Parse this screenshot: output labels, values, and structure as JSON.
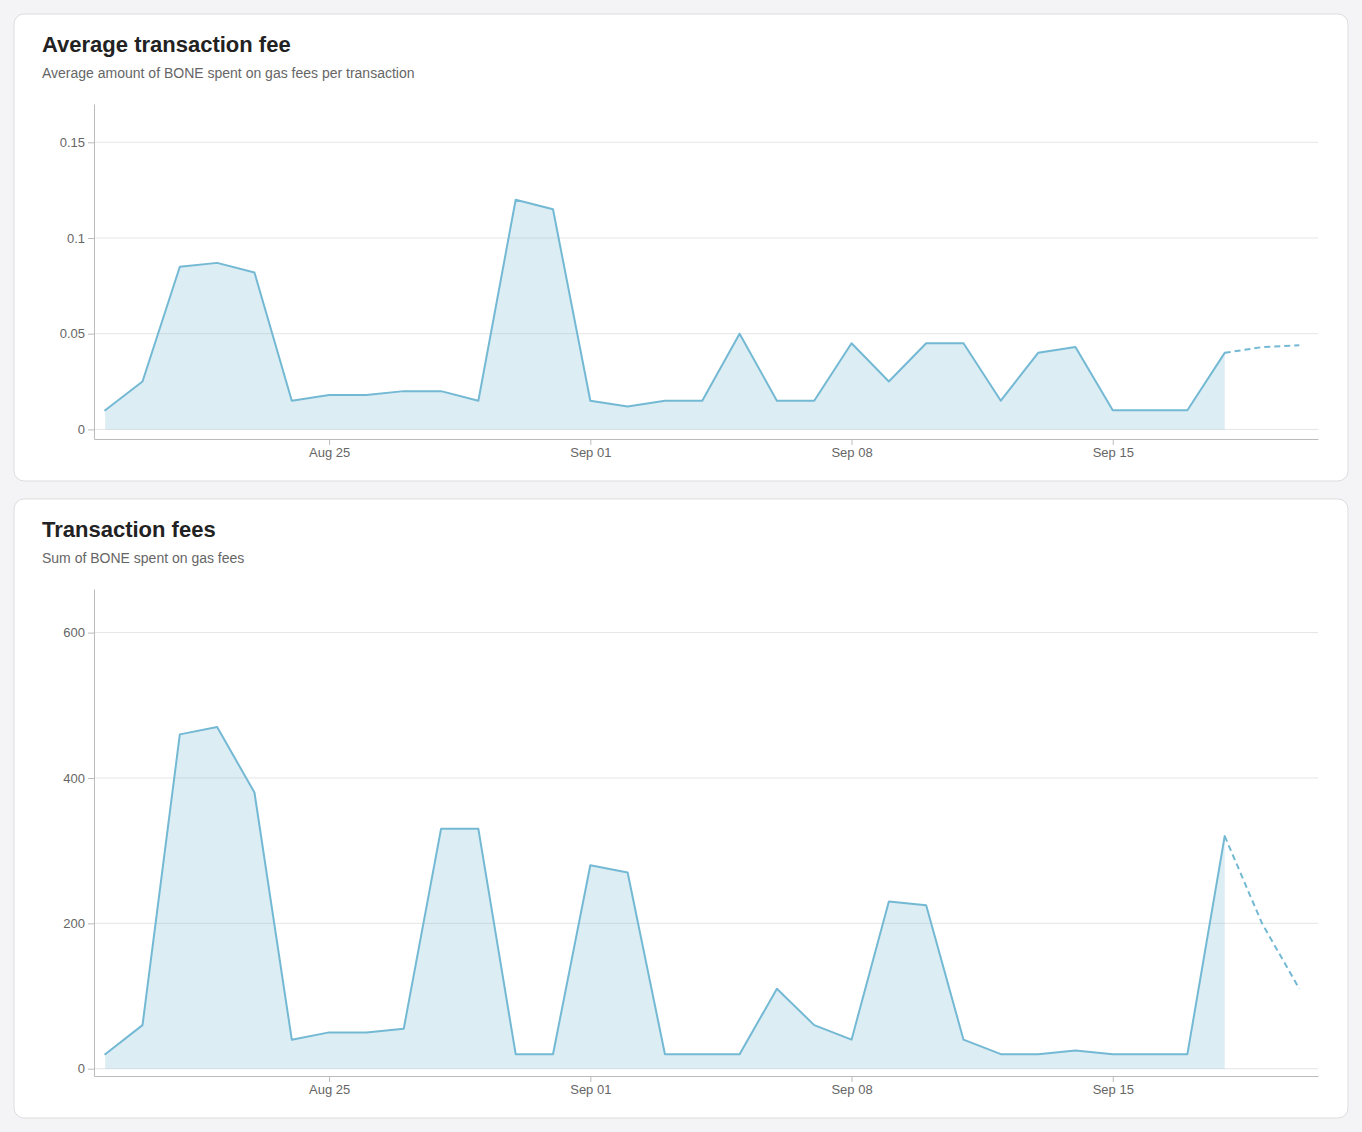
{
  "chart_data": [
    {
      "type": "line",
      "title": "Average transaction fee",
      "subtitle": "Average amount of BONE spent on gas fees per transaction",
      "series": [
        {
          "type": "area",
          "line_style": "solid",
          "color": "#74b9d4",
          "x": [
            0,
            1,
            2,
            3,
            4,
            5,
            6,
            7,
            8,
            9,
            10,
            11,
            12,
            13,
            14,
            15,
            16,
            17,
            18,
            19,
            20,
            21,
            22,
            23,
            24,
            25,
            26,
            27,
            28,
            29,
            30
          ],
          "values": [
            0.01,
            0.025,
            0.085,
            0.087,
            0.082,
            0.015,
            0.018,
            0.018,
            0.02,
            0.02,
            0.015,
            0.12,
            0.115,
            0.015,
            0.012,
            0.015,
            0.015,
            0.05,
            0.015,
            0.015,
            0.045,
            0.025,
            0.045,
            0.045,
            0.015,
            0.04,
            0.043,
            0.01,
            0.01,
            0.01,
            0.04
          ]
        },
        {
          "type": "line",
          "line_style": "dashed",
          "color": "#74b9d4",
          "x": [
            30,
            31,
            32
          ],
          "values": [
            0.04,
            0.043,
            0.044
          ]
        }
      ],
      "xlim": [
        -0.3,
        32.5
      ],
      "xticks": [
        {
          "value": 6,
          "label": "Aug 25"
        },
        {
          "value": 13,
          "label": "Sep 01"
        },
        {
          "value": 20,
          "label": "Sep 08"
        },
        {
          "value": 27,
          "label": "Sep 15"
        }
      ],
      "ylim": [
        -0.005,
        0.17
      ],
      "yticks": [
        0,
        0.05,
        0.1,
        0.15
      ],
      "grid": true
    },
    {
      "type": "line",
      "title": "Transaction fees",
      "subtitle": "Sum of BONE spent on gas fees",
      "series": [
        {
          "type": "area",
          "line_style": "solid",
          "color": "#74b9d4",
          "x": [
            0,
            1,
            2,
            3,
            4,
            5,
            6,
            7,
            8,
            9,
            10,
            11,
            12,
            13,
            14,
            15,
            16,
            17,
            18,
            19,
            20,
            21,
            22,
            23,
            24,
            25,
            26,
            27,
            28,
            29,
            30
          ],
          "values": [
            20,
            60,
            460,
            470,
            380,
            40,
            50,
            50,
            55,
            330,
            330,
            20,
            20,
            280,
            270,
            20,
            20,
            20,
            110,
            60,
            40,
            230,
            225,
            40,
            20,
            20,
            25,
            20,
            20,
            20,
            320
          ]
        },
        {
          "type": "line",
          "line_style": "dashed",
          "color": "#74b9d4",
          "x": [
            30,
            31,
            32
          ],
          "values": [
            320,
            200,
            110
          ]
        }
      ],
      "xlim": [
        -0.3,
        32.5
      ],
      "xticks": [
        {
          "value": 6,
          "label": "Aug 25"
        },
        {
          "value": 13,
          "label": "Sep 01"
        },
        {
          "value": 20,
          "label": "Sep 08"
        },
        {
          "value": 27,
          "label": "Sep 15"
        }
      ],
      "ylim": [
        -10,
        660
      ],
      "yticks": [
        0,
        200,
        400,
        600
      ],
      "grid": true
    }
  ]
}
